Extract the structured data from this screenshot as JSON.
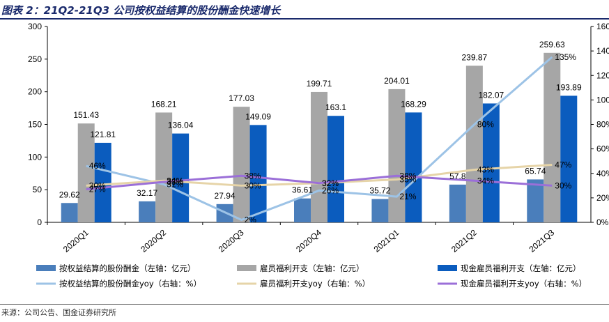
{
  "title": "图表 2：21Q2-21Q3 公司按权益结算的股份酬金快速增长",
  "source": "来源：公司公告、国金证券研究所",
  "chart_data": {
    "type": "bar",
    "categories": [
      "2020Q1",
      "2020Q2",
      "2020Q3",
      "2020Q4",
      "2021Q1",
      "2021Q2",
      "2021Q3"
    ],
    "y_left": {
      "range": [
        0,
        300
      ],
      "ticks": [
        "0",
        "50",
        "100",
        "150",
        "200",
        "250",
        "300"
      ]
    },
    "y_right": {
      "range": [
        0,
        160
      ],
      "ticks": [
        "0%",
        "20%",
        "40%",
        "60%",
        "80%",
        "100%",
        "120%",
        "140%",
        "160%"
      ]
    },
    "bar_series": [
      {
        "name": "按权益结算的股份酬金（左轴：亿元）",
        "color": "#4a7ebb",
        "values": [
          29.62,
          32.17,
          27.94,
          36.61,
          35.72,
          57.8,
          65.74
        ],
        "labels": [
          "29.62",
          "32.17",
          "27.94",
          "36.61",
          "35.72",
          "57.8",
          "65.74"
        ]
      },
      {
        "name": "雇员福利开支（左轴：亿元）",
        "color": "#a6a6a6",
        "values": [
          151.43,
          168.21,
          177.03,
          199.71,
          204.01,
          239.87,
          259.63
        ],
        "labels": [
          "151.43",
          "168.21",
          "177.03",
          "199.71",
          "204.01",
          "239.87",
          "259.63"
        ]
      },
      {
        "name": "现金雇员福利开支（左轴：亿元）",
        "color": "#0b5cbe",
        "values": [
          121.81,
          136.04,
          149.09,
          163.1,
          168.29,
          182.07,
          193.89
        ],
        "labels": [
          "121.81",
          "136.04",
          "149.09",
          "163.1",
          "168.29",
          "182.07",
          "193.89"
        ]
      }
    ],
    "line_series": [
      {
        "name": "按权益结算的股份酬金yoy（右轴：%）",
        "color": "#9dc3e6",
        "values": [
          46,
          31,
          2,
          26,
          21,
          80,
          135
        ],
        "labels": [
          "46%",
          "31%",
          "2%",
          "26%",
          "21%",
          "80%",
          "135%"
        ]
      },
      {
        "name": "雇员福利开支yoy（右轴：%）",
        "color": "#e6d4a8",
        "values": [
          30,
          34,
          30,
          32,
          35,
          43,
          47
        ],
        "labels": [
          "30%",
          "34%",
          "30%",
          "32%",
          "35%",
          "43%",
          "47%"
        ]
      },
      {
        "name": "现金雇员福利开支yoy（右轴：%）",
        "color": "#9b6fd8",
        "values": [
          27,
          33,
          38,
          32,
          38,
          34,
          30
        ],
        "labels": [
          "27%",
          "33%",
          "38%",
          "32%",
          "38%",
          "34%",
          "30%"
        ]
      }
    ]
  }
}
